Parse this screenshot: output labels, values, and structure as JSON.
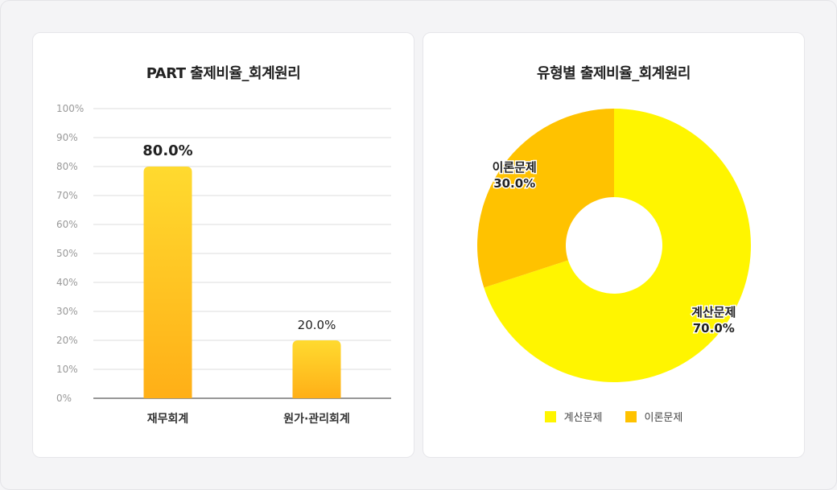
{
  "chart_data": [
    {
      "type": "bar",
      "title": "PART 출제비율_회계원리",
      "categories": [
        "재무회계",
        "원가·관리회계"
      ],
      "values": [
        80.0,
        20.0
      ],
      "value_labels": [
        "80.0%",
        "20.0%"
      ],
      "yticks": [
        "0%",
        "10%",
        "20%",
        "30%",
        "40%",
        "50%",
        "60%",
        "70%",
        "80%",
        "90%",
        "100%"
      ],
      "ylim": [
        0,
        100
      ],
      "grid": true,
      "colors": {
        "bar_top": "#ffda2f",
        "bar_bottom": "#ffaf17",
        "grid": "#dcdcdc",
        "axis": "#777777"
      }
    },
    {
      "type": "pie",
      "variant": "donut",
      "title": "유형별 출제비율_회계원리",
      "labels": [
        "계산문제",
        "이론문제"
      ],
      "values": [
        70.0,
        30.0
      ],
      "value_labels": [
        "70.0%",
        "30.0%"
      ],
      "colors": [
        "#fff500",
        "#ffc200"
      ],
      "legend": "bottom"
    }
  ]
}
